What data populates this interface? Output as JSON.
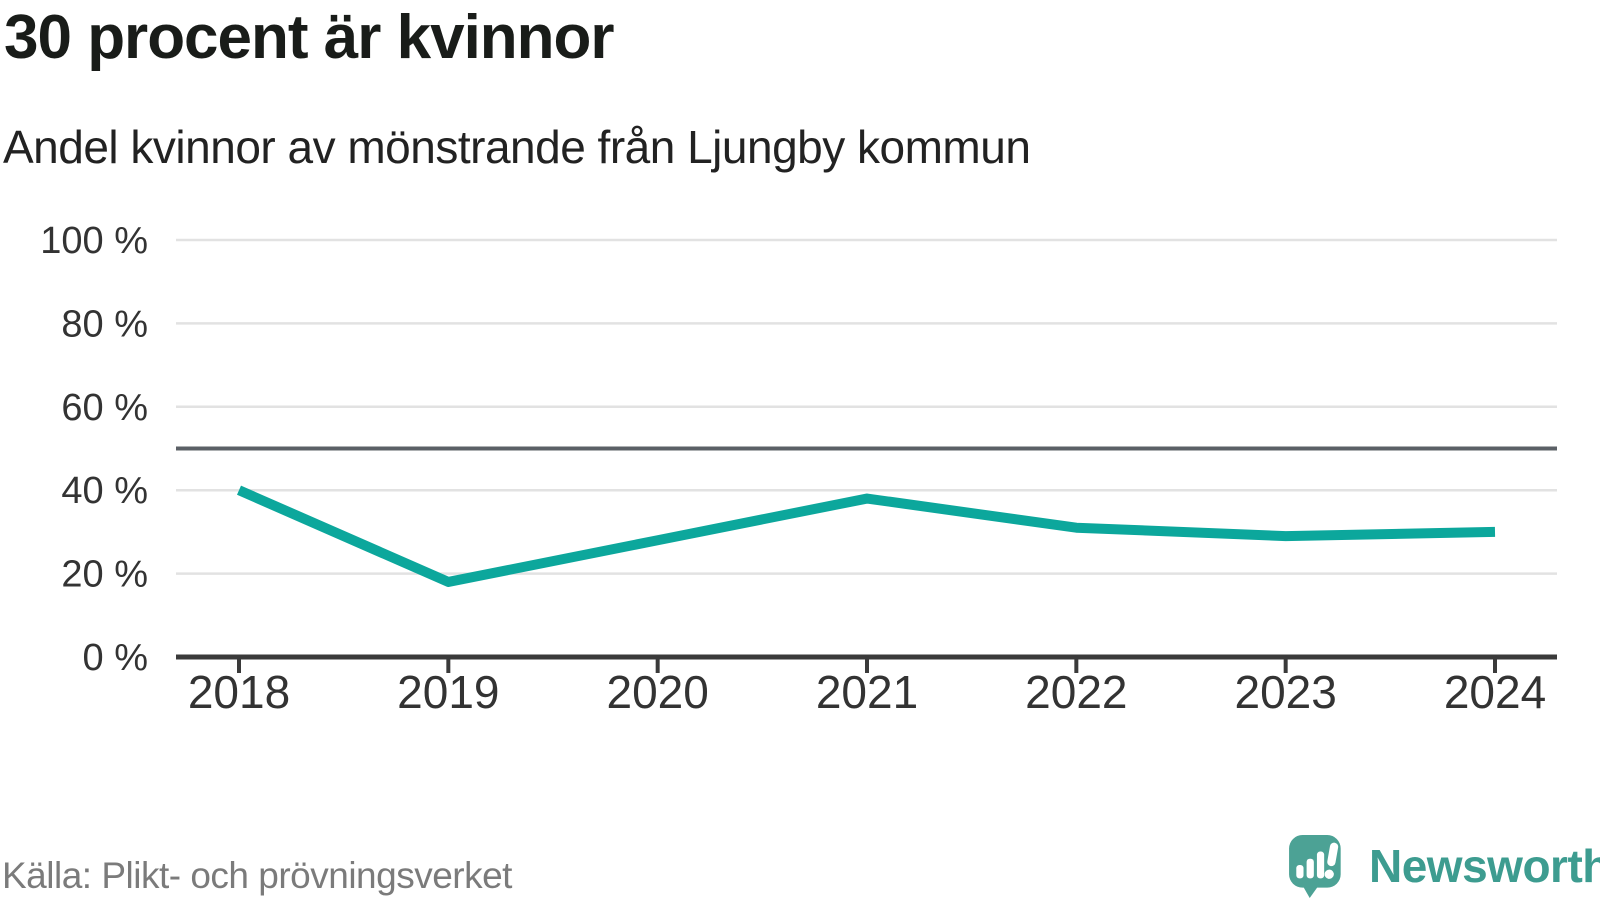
{
  "header": {
    "title": "30 procent är kvinnor",
    "subtitle": "Andel kvinnor av mönstrande från Ljungby kommun"
  },
  "chart_data": {
    "type": "line",
    "title": "30 procent är kvinnor",
    "subtitle": "Andel kvinnor av mönstrande från Ljungby kommun",
    "x": [
      2018,
      2019,
      2020,
      2021,
      2022,
      2023,
      2024
    ],
    "series": [
      {
        "name": "Andel kvinnor av mönstrande",
        "values": [
          40,
          18,
          28,
          38,
          31,
          29,
          30
        ]
      }
    ],
    "unit": "%",
    "ylim": [
      0,
      100
    ],
    "yticks": [
      0,
      20,
      40,
      60,
      80,
      100
    ],
    "ytick_label_format": "{v} %",
    "reference_line": 50,
    "grid": true,
    "legend": "none",
    "colors": {
      "line": "#0ca79c",
      "grid": "#e2e2e2",
      "axis": "#3a3a3a",
      "reference": "#5b6066",
      "tick_text": "#333333"
    }
  },
  "footer": {
    "source": "Källa: Plikt- och prövningsverket",
    "brand": {
      "name": "Newsworthy",
      "text_color": "#3d9c90",
      "mark_color": "#4ca295",
      "logo": "newsworthy-logo"
    }
  }
}
